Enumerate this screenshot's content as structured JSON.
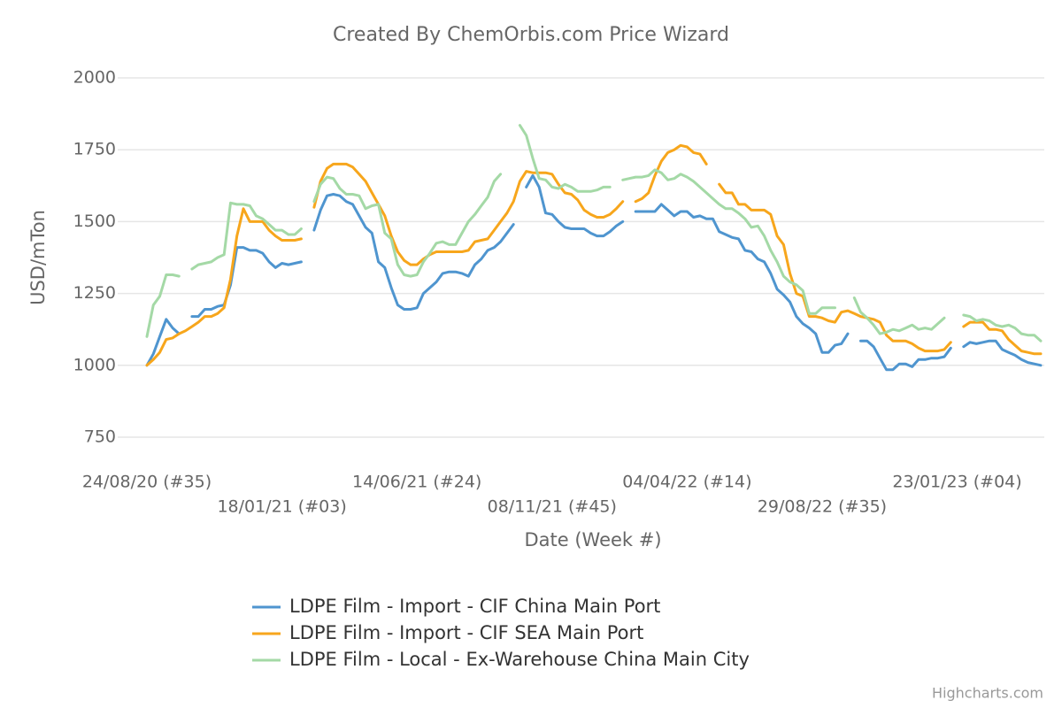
{
  "chart_data": {
    "type": "line",
    "title": "Created By ChemOrbis.com Price Wizard",
    "y_label": "USD/mTon",
    "x_label": "Date (Week #)",
    "credits": "Highcharts.com",
    "ylim": [
      750,
      2000
    ],
    "yticks": [
      750,
      1000,
      1250,
      1500,
      1750,
      2000
    ],
    "grid": true,
    "legend": "bottom",
    "categories": [
      "24/08/20 (#35)",
      null,
      null,
      null,
      null,
      null,
      null,
      null,
      null,
      null,
      null,
      null,
      null,
      null,
      null,
      null,
      null,
      null,
      null,
      null,
      null,
      "18/01/21 (#03)",
      null,
      null,
      null,
      null,
      null,
      null,
      null,
      null,
      null,
      null,
      null,
      null,
      null,
      null,
      null,
      null,
      null,
      null,
      null,
      null,
      "14/06/21 (#24)",
      null,
      null,
      null,
      null,
      null,
      null,
      null,
      null,
      null,
      null,
      null,
      null,
      null,
      null,
      null,
      null,
      null,
      null,
      null,
      null,
      "08/11/21 (#45)",
      null,
      null,
      null,
      null,
      null,
      null,
      null,
      null,
      null,
      null,
      null,
      null,
      null,
      null,
      null,
      null,
      null,
      null,
      null,
      null,
      "04/04/22 (#14)",
      null,
      null,
      null,
      null,
      null,
      null,
      null,
      null,
      null,
      null,
      null,
      null,
      null,
      null,
      null,
      null,
      null,
      null,
      null,
      null,
      "29/08/22 (#35)",
      null,
      null,
      null,
      null,
      null,
      null,
      null,
      null,
      null,
      null,
      null,
      null,
      null,
      null,
      null,
      null,
      null,
      null,
      null,
      null,
      "23/01/23 (#04)",
      null,
      null,
      null,
      null,
      null,
      null,
      null,
      null,
      null,
      null,
      null,
      null,
      null
    ],
    "series": [
      {
        "name": "LDPE Film - Import - CIF China Main Port",
        "color": "#4f95cf",
        "values": [
          1000,
          1040,
          1100,
          1160,
          1130,
          1110,
          null,
          1170,
          1170,
          1195,
          1195,
          1205,
          1210,
          1280,
          1410,
          1410,
          1400,
          1400,
          1390,
          1360,
          1340,
          1355,
          1350,
          1355,
          1360,
          null,
          1470,
          1540,
          1590,
          1595,
          1590,
          1570,
          1560,
          1520,
          1480,
          1460,
          1360,
          1340,
          1270,
          1210,
          1195,
          1195,
          1200,
          1250,
          1270,
          1290,
          1320,
          1325,
          1325,
          1320,
          1310,
          1350,
          1370,
          1400,
          1410,
          1430,
          1460,
          1490,
          null,
          1620,
          1660,
          1620,
          1530,
          1525,
          1500,
          1480,
          1475,
          1475,
          1475,
          1460,
          1450,
          1450,
          1465,
          1485,
          1500,
          null,
          1535,
          1535,
          1535,
          1535,
          1560,
          1540,
          1520,
          1535,
          1535,
          1515,
          1520,
          1510,
          1510,
          1465,
          1455,
          1445,
          1440,
          1400,
          1395,
          1370,
          1360,
          1320,
          1265,
          1245,
          1220,
          1170,
          1145,
          1130,
          1110,
          1045,
          1045,
          1070,
          1075,
          1110,
          null,
          1085,
          1085,
          1065,
          1025,
          985,
          985,
          1005,
          1005,
          995,
          1020,
          1020,
          1025,
          1025,
          1030,
          1060,
          null,
          1065,
          1080,
          1075,
          1080,
          1085,
          1085,
          1055,
          1045,
          1035,
          1020,
          1010,
          1005,
          1000
        ]
      },
      {
        "name": "LDPE Film - Import - CIF SEA Main Port",
        "color": "#f7a61c",
        "values": [
          1000,
          1020,
          1045,
          1090,
          1095,
          1110,
          1120,
          1135,
          1150,
          1170,
          1170,
          1180,
          1200,
          1300,
          1450,
          1545,
          1500,
          1500,
          1500,
          1470,
          1450,
          1435,
          1435,
          1435,
          1440,
          null,
          1550,
          1640,
          1685,
          1700,
          1700,
          1700,
          1690,
          1665,
          1640,
          1600,
          1560,
          1520,
          1450,
          1395,
          1365,
          1350,
          1350,
          1370,
          1385,
          1395,
          1395,
          1395,
          1395,
          1395,
          1400,
          1430,
          1435,
          1440,
          1470,
          1500,
          1530,
          1570,
          1640,
          1675,
          1670,
          1670,
          1670,
          1665,
          1630,
          1600,
          1595,
          1575,
          1540,
          1525,
          1515,
          1515,
          1525,
          1545,
          1570,
          null,
          1570,
          1580,
          1600,
          1660,
          1710,
          1740,
          1750,
          1765,
          1760,
          1740,
          1735,
          1700,
          null,
          1630,
          1600,
          1600,
          1560,
          1560,
          1540,
          1540,
          1540,
          1525,
          1450,
          1420,
          1320,
          1250,
          1240,
          1170,
          1170,
          1165,
          1155,
          1150,
          1185,
          1190,
          1180,
          1170,
          1165,
          1160,
          1150,
          1105,
          1085,
          1085,
          1085,
          1075,
          1060,
          1050,
          1050,
          1050,
          1055,
          1080,
          null,
          1135,
          1150,
          1150,
          1150,
          1125,
          1125,
          1120,
          1090,
          1070,
          1050,
          1045,
          1040,
          1040
        ]
      },
      {
        "name": "LDPE Film - Local - Ex-Warehouse China Main City",
        "color": "#a4d9a6",
        "values": [
          1100,
          1210,
          1240,
          1315,
          1315,
          1310,
          null,
          1335,
          1350,
          1355,
          1360,
          1375,
          1385,
          1565,
          1560,
          1560,
          1555,
          1520,
          1510,
          1490,
          1470,
          1470,
          1455,
          1455,
          1475,
          null,
          1570,
          1630,
          1655,
          1650,
          1615,
          1595,
          1595,
          1590,
          1545,
          1555,
          1560,
          1460,
          1440,
          1350,
          1315,
          1310,
          1315,
          1360,
          1390,
          1425,
          1430,
          1420,
          1420,
          1460,
          1500,
          1525,
          1555,
          1585,
          1640,
          1665,
          null,
          null,
          1835,
          1800,
          1720,
          1650,
          1645,
          1620,
          1615,
          1630,
          1620,
          1605,
          1605,
          1605,
          1610,
          1620,
          1620,
          null,
          1645,
          1650,
          1655,
          1655,
          1660,
          1680,
          1670,
          1645,
          1650,
          1665,
          1655,
          1640,
          1620,
          1600,
          1580,
          1560,
          1545,
          1545,
          1530,
          1510,
          1480,
          1485,
          1450,
          1400,
          1360,
          1310,
          1290,
          1280,
          1260,
          1180,
          1180,
          1200,
          1200,
          1200,
          null,
          null,
          1235,
          1185,
          1165,
          1140,
          1110,
          1115,
          1125,
          1120,
          1130,
          1140,
          1125,
          1130,
          1125,
          1145,
          1165,
          null,
          null,
          1175,
          1170,
          1155,
          1160,
          1155,
          1140,
          1135,
          1140,
          1130,
          1110,
          1105,
          1105,
          1085
        ]
      }
    ]
  }
}
